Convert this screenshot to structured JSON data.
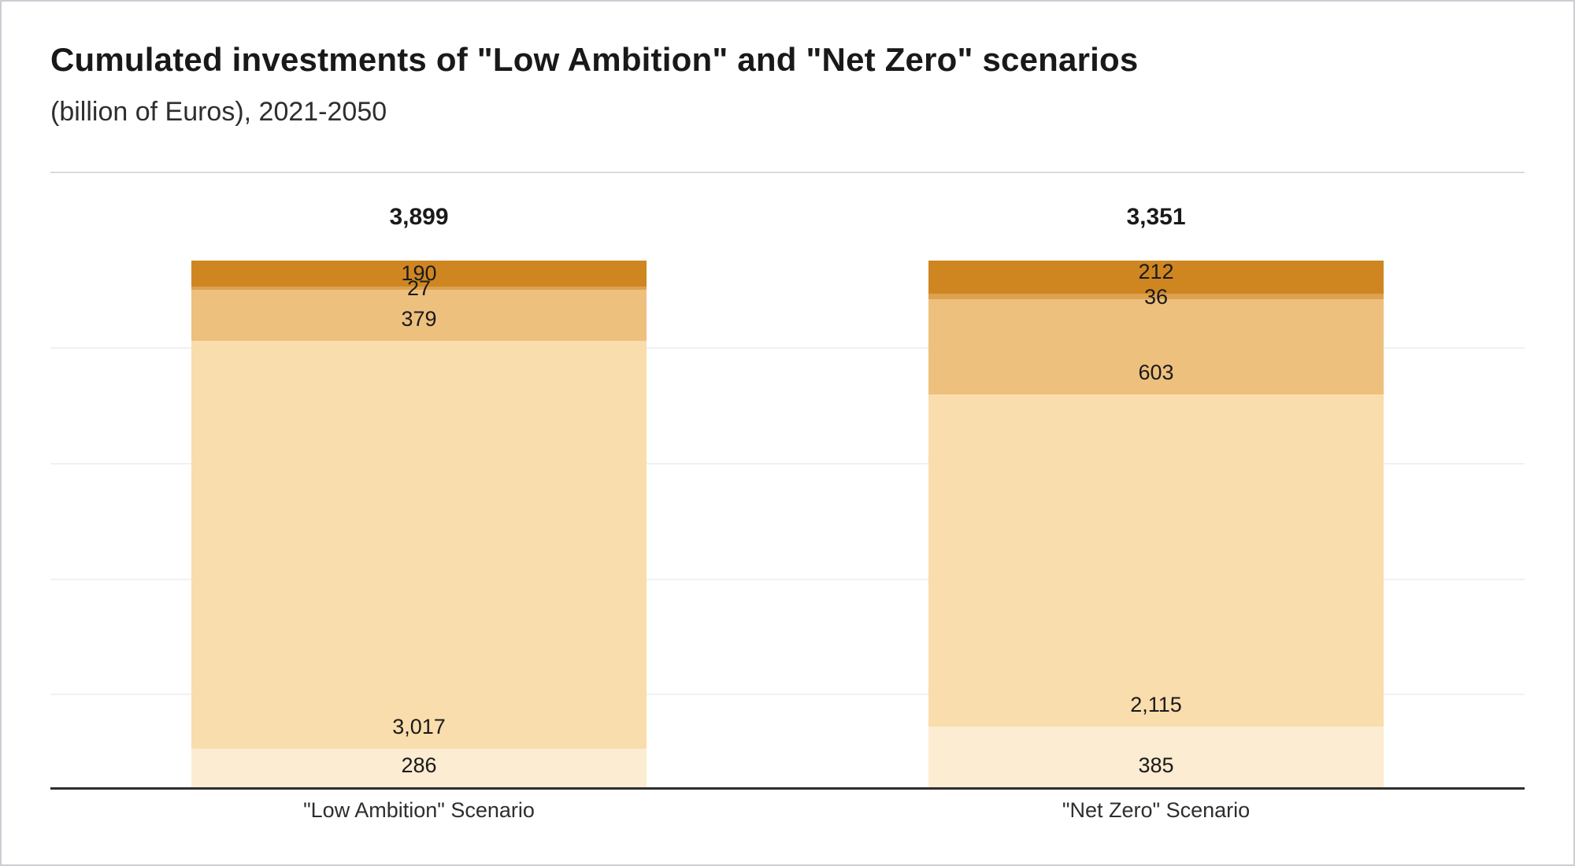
{
  "chart_data": {
    "type": "bar",
    "stacked": true,
    "title": "Cumulated investments of \"Low Ambition\" and \"Net Zero\" scenarios",
    "subtitle": "(billion of Euros), 2021-2050",
    "categories": [
      "\"Low Ambition\" Scenario",
      "\"Net Zero\" Scenario"
    ],
    "totals": [
      3899,
      3351
    ],
    "total_labels": [
      "3,899",
      "3,351"
    ],
    "series": [
      {
        "name": "segment-1-top",
        "color": "#cf8621",
        "values": [
          190,
          212
        ],
        "labels": [
          "190",
          "212"
        ]
      },
      {
        "name": "segment-2",
        "color": "#dda14f",
        "values": [
          27,
          36
        ],
        "labels": [
          "27",
          "36"
        ]
      },
      {
        "name": "segment-3",
        "color": "#eec07e",
        "values": [
          379,
          603
        ],
        "labels": [
          "379",
          "603"
        ]
      },
      {
        "name": "segment-4",
        "color": "#f9ddad",
        "values": [
          3017,
          2115
        ],
        "labels": [
          "3,017",
          "2,115"
        ]
      },
      {
        "name": "segment-5-bottom",
        "color": "#fcecd2",
        "values": [
          286,
          385
        ],
        "labels": [
          "286",
          "385"
        ]
      }
    ],
    "legend": "none",
    "grid": "horizontal-faint",
    "ylim_note": "each bar drawn full height; segments proportional to value/total",
    "colors": {
      "axis": "#2e2e2e",
      "gridline": "#f1f1f1",
      "top_border": "#dadada",
      "text": "#1a1a1a"
    }
  }
}
